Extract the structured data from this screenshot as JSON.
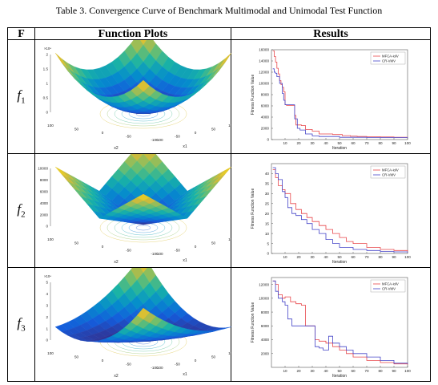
{
  "caption": "Table 3. Convergence Curve of Benchmark Multimodal and Unimodal Test Function",
  "headers": {
    "f": "F",
    "plots": "Function Plots",
    "results": "Results"
  },
  "rows": [
    {
      "fname": "f",
      "fsub": "1",
      "surface": {
        "zlabel": "F1(x1, x2)",
        "zexp": "×10⁴",
        "zticks": [
          "2",
          "1.5",
          "1",
          "0.5",
          "0"
        ],
        "xlabel": "x1",
        "ylabel": "x2",
        "xticks": [
          "-100",
          "-50",
          "0",
          "50",
          "100"
        ],
        "yticks": [
          "-100",
          "-50",
          "0",
          "50",
          "100"
        ]
      },
      "chart_data": {
        "type": "line",
        "xlabel": "Iteration",
        "ylabel": "Fitness Function Value",
        "xlim": [
          0,
          100
        ],
        "ylim": [
          0,
          16000
        ],
        "yticks": [
          "16000",
          "14000",
          "12000",
          "10000",
          "8000",
          "6000",
          "4000",
          "2000",
          "0"
        ],
        "xticks": [
          "10",
          "20",
          "30",
          "40",
          "50",
          "60",
          "70",
          "80",
          "90",
          "100"
        ],
        "legend_position": "top-right",
        "series": [
          {
            "name": "MFCA-iolV",
            "color": "#e8464a",
            "x": [
              1,
              2,
              3,
              4,
              5,
              6,
              7,
              8,
              9,
              10,
              11,
              12,
              15,
              17,
              18,
              22,
              25,
              30,
              35,
              45,
              52,
              58,
              63,
              70,
              80,
              90,
              100
            ],
            "values": [
              15800,
              14800,
              13800,
              12700,
              11700,
              10500,
              9800,
              9300,
              8500,
              6200,
              6100,
              6100,
              6100,
              4300,
              2600,
              2500,
              1800,
              1500,
              1000,
              900,
              700,
              600,
              550,
              500,
              450,
              420,
              400
            ]
          },
          {
            "name": "CR-VMV",
            "color": "#4444c8",
            "x": [
              1,
              2,
              3,
              4,
              6,
              8,
              9,
              10,
              12,
              15,
              17,
              19,
              21,
              25,
              30,
              35,
              50,
              70,
              100
            ],
            "values": [
              12600,
              12000,
              11800,
              11200,
              10000,
              8200,
              7000,
              6200,
              6200,
              6200,
              3700,
              2000,
              1700,
              1000,
              650,
              550,
              400,
              350,
              300
            ]
          }
        ]
      }
    },
    {
      "fname": "f",
      "fsub": "2",
      "surface": {
        "zlabel": "F2(x1, x2)",
        "zexp": "",
        "zticks": [
          "10000",
          "8000",
          "6000",
          "4000",
          "2000",
          "0"
        ],
        "xlabel": "x1",
        "ylabel": "x2",
        "xticks": [
          "-100",
          "-50",
          "0",
          "50",
          "100"
        ],
        "yticks": [
          "-100",
          "-50",
          "0",
          "50",
          "100"
        ]
      },
      "chart_data": {
        "type": "line",
        "xlabel": "Iteration",
        "ylabel": "Fitness Function Value",
        "xlim": [
          0,
          100
        ],
        "ylim": [
          0,
          45
        ],
        "yticks": [
          "40",
          "35",
          "30",
          "25",
          "20",
          "15",
          "10",
          "5",
          "0"
        ],
        "xticks": [
          "10",
          "20",
          "30",
          "40",
          "50",
          "60",
          "70",
          "80",
          "90",
          "100"
        ],
        "legend_position": "top-right",
        "series": [
          {
            "name": "MFCA-iolV",
            "color": "#e8464a",
            "x": [
              1,
              3,
              5,
              8,
              10,
              14,
              18,
              22,
              26,
              30,
              35,
              40,
              45,
              50,
              55,
              60,
              70,
              80,
              90,
              100
            ],
            "values": [
              42,
              38,
              34,
              32,
              30,
              25,
              22,
              20,
              18,
              16,
              14,
              12,
              10,
              8,
              6,
              5,
              3,
              2,
              1.5,
              1
            ]
          },
          {
            "name": "CR-VMV",
            "color": "#4444c8",
            "x": [
              1,
              3,
              5,
              8,
              10,
              12,
              15,
              18,
              22,
              26,
              30,
              35,
              40,
              45,
              50,
              60,
              70,
              80,
              90,
              100
            ],
            "values": [
              43,
              40,
              37,
              31,
              28,
              23,
              20,
              19,
              17,
              15,
              12,
              10,
              7,
              5,
              3,
              2,
              1.5,
              1,
              0.8,
              0.5
            ]
          }
        ]
      }
    },
    {
      "fname": "f",
      "fsub": "3",
      "surface": {
        "zlabel": "F3(x1, x2)",
        "zexp": "×10⁴",
        "zticks": [
          "5",
          "4",
          "3",
          "2",
          "1",
          "0"
        ],
        "xlabel": "x1",
        "ylabel": "x2",
        "xticks": [
          "-100",
          "-50",
          "0",
          "50",
          "100"
        ],
        "yticks": [
          "-100",
          "-50",
          "0",
          "50",
          "100"
        ]
      },
      "chart_data": {
        "type": "line",
        "xlabel": "Iteration",
        "ylabel": "Fitness Function Value",
        "xlim": [
          0,
          100
        ],
        "ylim": [
          0,
          13000
        ],
        "yticks": [
          "12000",
          "10000",
          "8000",
          "6000",
          "4000",
          "2000"
        ],
        "xticks": [
          "10",
          "20",
          "30",
          "40",
          "50",
          "60",
          "70",
          "80",
          "90",
          "100"
        ],
        "legend_position": "top-right",
        "series": [
          {
            "name": "MFCA-iolV",
            "color": "#e8464a",
            "x": [
              1,
              3,
              5,
              8,
              10,
              14,
              18,
              22,
              25,
              30,
              32,
              35,
              40,
              45,
              50,
              55,
              60,
              70,
              80,
              90,
              100
            ],
            "values": [
              12500,
              12000,
              10500,
              10000,
              10200,
              9500,
              9200,
              9000,
              6000,
              6000,
              4000,
              3800,
              3500,
              3000,
              2500,
              2000,
              1500,
              1000,
              700,
              500,
              400
            ]
          },
          {
            "name": "CR-VMV",
            "color": "#4444c8",
            "x": [
              1,
              3,
              5,
              8,
              10,
              12,
              15,
              20,
              25,
              30,
              32,
              35,
              38,
              42,
              45,
              50,
              55,
              60,
              70,
              80,
              90,
              100
            ],
            "values": [
              12500,
              11000,
              10000,
              9500,
              9000,
              7000,
              6000,
              6000,
              6000,
              6000,
              3000,
              2800,
              2500,
              4500,
              3500,
              3000,
              2500,
              2000,
              1500,
              1000,
              600,
              500
            ]
          }
        ]
      }
    }
  ]
}
